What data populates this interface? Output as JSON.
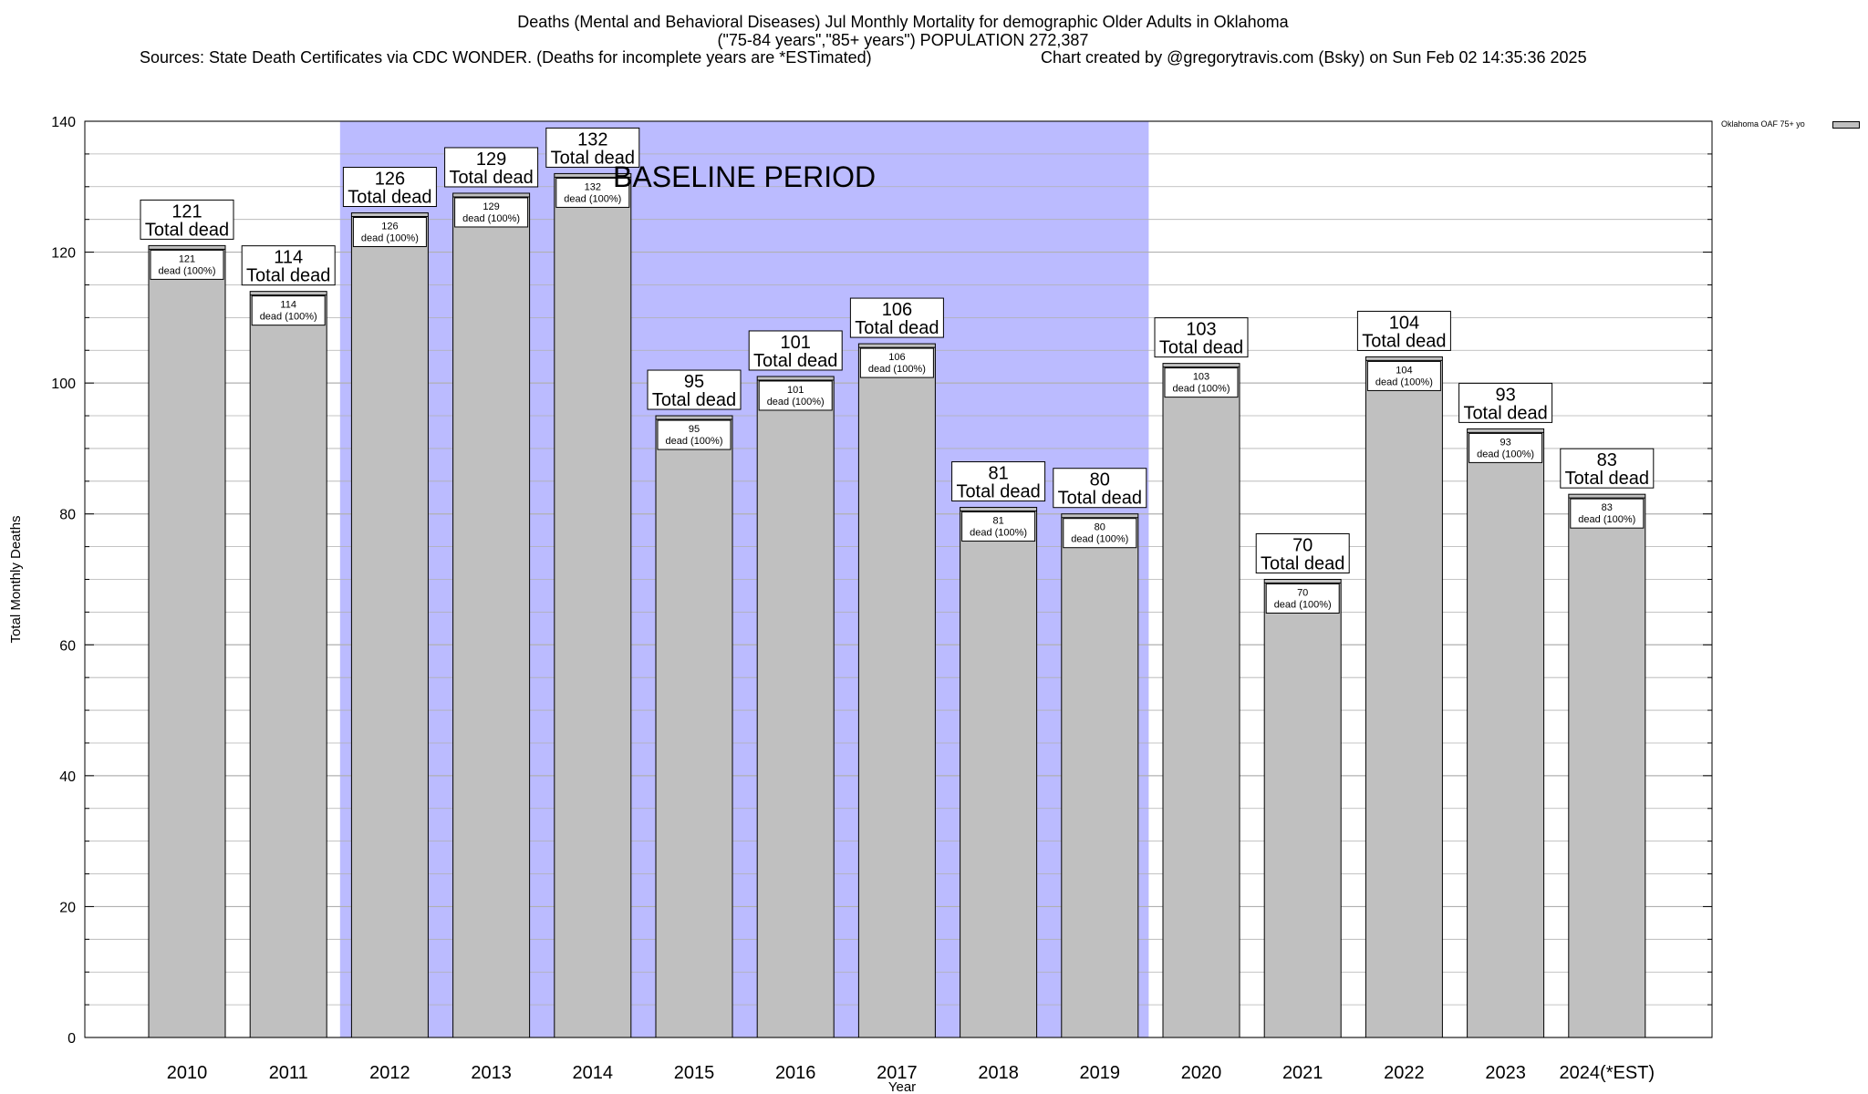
{
  "header": {
    "title_line1": "Deaths (Mental and Behavioral Diseases) Jul Monthly Mortality for demographic Older Adults in Oklahoma",
    "title_line2": "(\"75-84 years\",\"85+ years\") POPULATION 272,387",
    "sources": "Sources: State Death Certificates via CDC WONDER. (Deaths for incomplete years are *ESTimated)",
    "credit": "Chart created by @gregorytravis.com (Bsky) on Sun Feb 02 14:35:36 2025"
  },
  "chart_data": {
    "type": "bar",
    "categories": [
      "2010",
      "2011",
      "2012",
      "2013",
      "2014",
      "2015",
      "2016",
      "2017",
      "2018",
      "2019",
      "2020",
      "2021",
      "2022",
      "2023",
      "2024(*EST)"
    ],
    "series": [
      {
        "name": "Oklahoma OAF 75+ yo",
        "values": [
          121,
          114,
          126,
          129,
          132,
          95,
          101,
          106,
          81,
          80,
          103,
          70,
          104,
          93,
          83
        ]
      }
    ],
    "xlabel": "Year",
    "ylabel": "Total Monthly Deaths",
    "ylim": [
      0,
      140
    ],
    "yticks": [
      0,
      20,
      40,
      60,
      80,
      100,
      120,
      140
    ],
    "grid": true,
    "legend_position": "top-right outside",
    "bar_label_line": "Total dead",
    "inner_label_line": "dead (100%)",
    "annotation": {
      "text": "BASELINE PERIOD",
      "from": "2012",
      "to": "2019"
    },
    "colors": {
      "bar": "#c0c0c0",
      "baseline": "#bbbbff",
      "grid": "#b0b0b0"
    }
  }
}
